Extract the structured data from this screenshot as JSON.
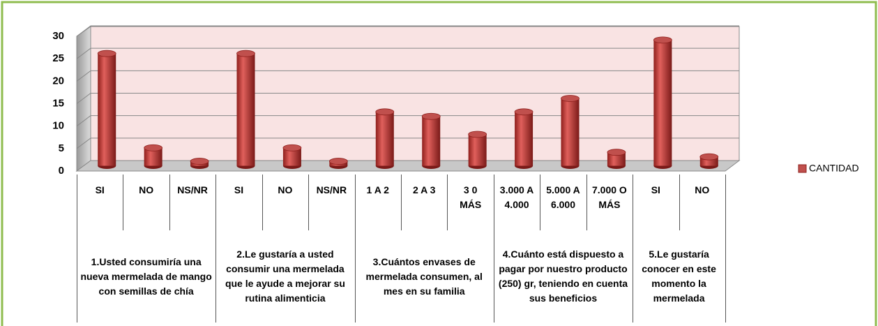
{
  "chart_data": {
    "type": "bar",
    "groups": [
      {
        "label": "1.Usted consumiría una nueva mermelada de mango con semillas de chía",
        "categories": [
          "SI",
          "NO",
          "NS/NR"
        ]
      },
      {
        "label": "2.Le gustaría a usted consumir una mermelada que le ayude a mejorar su rutina  alimenticia",
        "categories": [
          "SI",
          "NO",
          "NS/NR"
        ]
      },
      {
        "label": "3.Cuántos envases de mermelada consumen, al mes en su familia",
        "categories": [
          "1 A 2",
          "2 A 3",
          "3 0 MÁS"
        ]
      },
      {
        "label": "4.Cuánto está dispuesto a pagar por nuestro producto (250) gr, teniendo en cuenta sus beneficios",
        "categories": [
          "3.000 A 4.000",
          "5.000 A 6.000",
          "7.000 O MÁS"
        ]
      },
      {
        "label": "5.Le gustaría conocer en este momento la mermelada",
        "categories": [
          "SI",
          "NO"
        ]
      }
    ],
    "series": [
      {
        "name": "CANTIDAD",
        "color": "#c0504d",
        "values": [
          25,
          4,
          1,
          25,
          4,
          1,
          12,
          11,
          7,
          12,
          15,
          3,
          28,
          2
        ]
      }
    ],
    "ylim": [
      0,
      30
    ],
    "yticks": [
      0,
      5,
      10,
      15,
      20,
      25,
      30
    ],
    "grid": true,
    "legend": "right"
  }
}
